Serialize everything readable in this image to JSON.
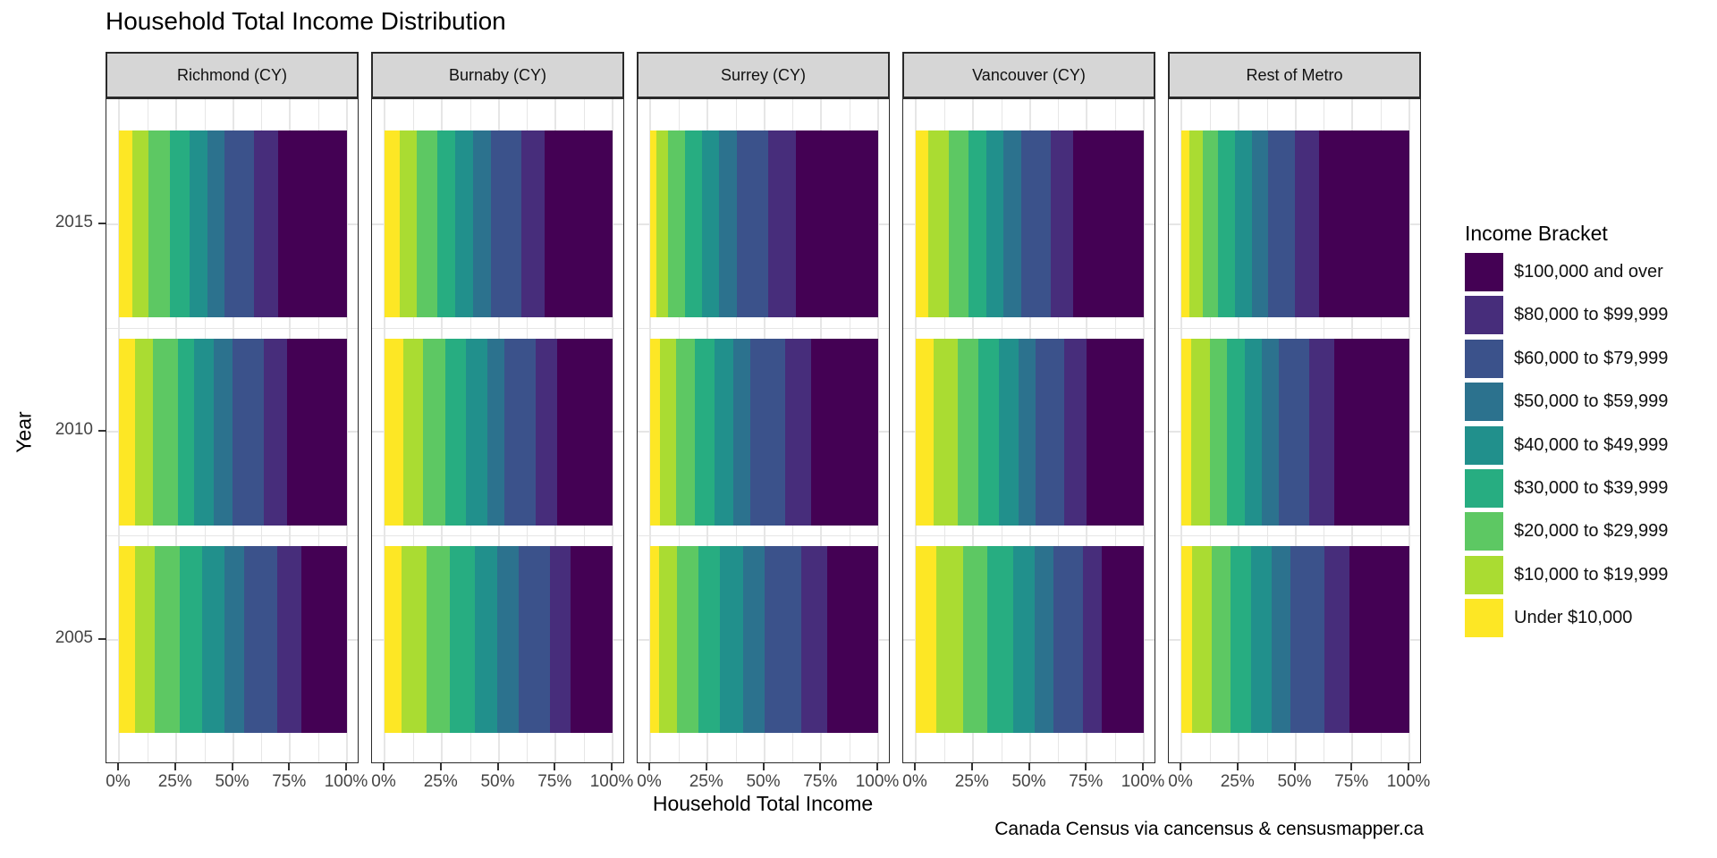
{
  "chart": {
    "title": "Household Total Income Distribution",
    "xlabel": "Household Total Income",
    "ylabel": "Year",
    "caption": "Canada Census via cancensus & censusmapper.ca",
    "legend_title": "Income Bracket"
  },
  "chart_data": {
    "type": "bar",
    "orientation": "horizontal",
    "stacked": true,
    "unit": "percent of households",
    "xlim": [
      0,
      100
    ],
    "grid": true,
    "legend_position": "right",
    "x_ticks": [
      "0%",
      "25%",
      "50%",
      "75%",
      "100%"
    ],
    "x_tick_values": [
      0,
      25,
      50,
      75,
      100
    ],
    "years_top_to_bottom": [
      "2015",
      "2010",
      "2005"
    ],
    "brackets_left_to_right": [
      "Under $10,000",
      "$10,000 to $19,999",
      "$20,000 to $29,999",
      "$30,000 to $39,999",
      "$40,000 to $49,999",
      "$50,000 to $59,999",
      "$60,000 to $79,999",
      "$80,000 to $99,999",
      "$100,000 and over"
    ],
    "colors_left_to_right": [
      "#FDE725",
      "#AADC32",
      "#5DC863",
      "#27AD81",
      "#21908C",
      "#2C728E",
      "#3B528B",
      "#472D7B",
      "#440154"
    ],
    "legend_top_to_bottom": [
      "$100,000 and over",
      "$80,000 to $99,999",
      "$60,000 to $79,999",
      "$50,000 to $59,999",
      "$40,000 to $49,999",
      "$30,000 to $39,999",
      "$20,000 to $29,999",
      "$10,000 to $19,999",
      "Under $10,000"
    ],
    "facets": [
      {
        "label": "Richmond (CY)",
        "values": {
          "2015": [
            6.0,
            7.1,
            9.1,
            8.7,
            7.8,
            7.4,
            13.0,
            10.8,
            30.1
          ],
          "2010": [
            7.1,
            7.8,
            10.8,
            7.4,
            8.6,
            8.1,
            13.6,
            10.4,
            26.2
          ],
          "2005": [
            6.9,
            8.8,
            10.9,
            9.9,
            9.6,
            8.6,
            14.8,
            10.4,
            20.1
          ]
        }
      },
      {
        "label": "Burnaby (CY)",
        "values": {
          "2015": [
            6.5,
            7.8,
            8.8,
            7.8,
            7.8,
            8.1,
            13.2,
            10.1,
            29.9
          ],
          "2010": [
            8.1,
            8.6,
            10.0,
            9.1,
            9.1,
            7.8,
            13.4,
            9.7,
            24.2
          ],
          "2005": [
            7.5,
            10.9,
            10.4,
            10.8,
            10.0,
            9.1,
            13.8,
            9.1,
            18.4
          ]
        }
      },
      {
        "label": "Surrey (CY)",
        "values": {
          "2015": [
            2.6,
            5.4,
            7.1,
            7.5,
            7.7,
            7.6,
            13.9,
            12.1,
            36.1
          ],
          "2010": [
            4.2,
            7.3,
            8.1,
            8.8,
            8.1,
            7.5,
            15.2,
            11.4,
            29.4
          ],
          "2005": [
            3.9,
            7.8,
            9.4,
            9.5,
            10.0,
            9.5,
            16.0,
            11.7,
            22.2
          ]
        }
      },
      {
        "label": "Vancouver (CY)",
        "values": {
          "2015": [
            5.6,
            9.1,
            8.3,
            7.9,
            7.4,
            7.8,
            13.2,
            9.8,
            30.9
          ],
          "2010": [
            7.8,
            10.7,
            9.1,
            8.7,
            8.7,
            7.5,
            12.7,
            9.6,
            25.2
          ],
          "2005": [
            9.1,
            11.6,
            10.7,
            11.3,
            9.4,
            8.3,
            12.9,
            8.2,
            18.5
          ]
        }
      },
      {
        "label": "Rest of Metro",
        "values": {
          "2015": [
            3.5,
            6.0,
            6.5,
            7.4,
            7.5,
            7.1,
            11.9,
            10.6,
            39.5
          ],
          "2010": [
            4.5,
            8.0,
            7.5,
            8.0,
            7.2,
            7.4,
            13.6,
            11.0,
            32.8
          ],
          "2005": [
            4.8,
            8.5,
            8.3,
            9.1,
            9.1,
            8.2,
            14.6,
            11.3,
            26.1
          ]
        }
      }
    ]
  }
}
